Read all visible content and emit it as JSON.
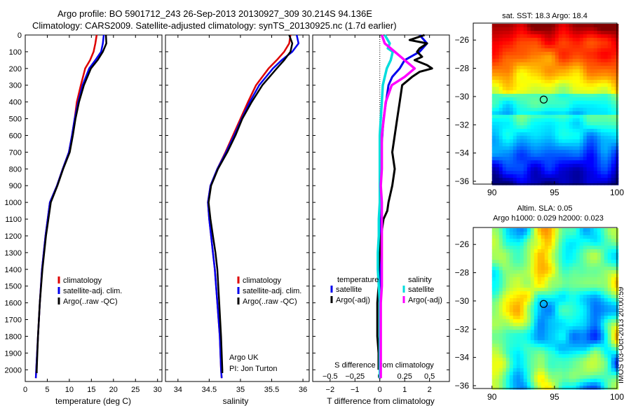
{
  "header": {
    "title1": "Argo profile: BO 5901712_243 26-Sep-2013 20130927_309 30.214S 94.136E",
    "title2": "Climatology: CARS2009. Satellite-adjusted climatology: synTS_20130925.nc (1.7d earlier)"
  },
  "footer": {
    "stamp": "IMOS 03-Oct-2013 20:00:59"
  },
  "colors": {
    "climatology": "#dd0000",
    "satellite": "#0000ee",
    "argo": "#000000",
    "sal_satellite": "#00dddd",
    "sal_argo": "#ff00ff"
  },
  "chart_data": [
    {
      "type": "line",
      "panel": "temperature",
      "xlabel": "temperature (deg C)",
      "ylabel": "",
      "xlim": [
        0,
        31
      ],
      "ylim": [
        2070,
        0
      ],
      "xticks": [
        0,
        5,
        10,
        15,
        20,
        25,
        30
      ],
      "yticks": [
        0,
        100,
        200,
        300,
        400,
        500,
        600,
        700,
        800,
        900,
        1000,
        1100,
        1200,
        1300,
        1400,
        1500,
        1600,
        1700,
        1800,
        1900,
        2000
      ],
      "legend": [
        "climatology",
        "satellite-adj. clim.",
        "Argo(..raw -QC)"
      ],
      "series": [
        {
          "name": "climatology",
          "depth": [
            0,
            50,
            100,
            150,
            200,
            300,
            400,
            500,
            600,
            700,
            800,
            900,
            1000,
            1200,
            1400,
            1600,
            1800,
            2000,
            2050
          ],
          "values": [
            16.2,
            15.9,
            15.5,
            14.7,
            13.6,
            12.6,
            11.7,
            11.2,
            10.6,
            9.9,
            8.5,
            7.2,
            5.6,
            4.6,
            3.8,
            3.3,
            2.9,
            2.5,
            2.4
          ]
        },
        {
          "name": "satellite-adj. clim.",
          "depth": [
            0,
            50,
            100,
            150,
            200,
            300,
            400,
            500,
            600,
            700,
            800,
            900,
            1000,
            1200,
            1400,
            1600,
            1800,
            2000,
            2050
          ],
          "values": [
            17.8,
            17.6,
            17.2,
            15.9,
            14.5,
            13.0,
            12.0,
            11.2,
            10.6,
            9.9,
            8.5,
            7.2,
            5.6,
            4.6,
            3.8,
            3.3,
            2.9,
            2.5,
            2.4
          ]
        },
        {
          "name": "Argo(..raw -QC)",
          "depth": [
            0,
            50,
            100,
            150,
            200,
            300,
            400,
            500,
            600,
            700,
            800,
            900,
            1000,
            1200,
            1400,
            1600,
            1800,
            2000,
            2020
          ],
          "values": [
            18.3,
            18.4,
            17.6,
            16.4,
            14.9,
            13.3,
            12.2,
            11.4,
            10.8,
            10.1,
            8.6,
            7.3,
            5.8,
            4.7,
            3.9,
            3.3,
            2.9,
            2.6,
            2.6
          ]
        }
      ]
    },
    {
      "type": "line",
      "panel": "salinity",
      "xlabel": "salinity",
      "ylabel": "",
      "xlim": [
        33.8,
        36.1
      ],
      "ylim": [
        2070,
        0
      ],
      "xticks": [
        34,
        34.5,
        35,
        35.5,
        36
      ],
      "legend": [
        "climatology",
        "satellite-adj. clim.",
        "Argo(..raw -QC)"
      ],
      "annotations": [
        "Argo UK",
        "PI: Jon Turton"
      ],
      "series": [
        {
          "name": "climatology",
          "depth": [
            0,
            50,
            100,
            150,
            200,
            300,
            400,
            500,
            600,
            700,
            800,
            900,
            1000,
            1100,
            1200,
            1300,
            1400,
            1600,
            1800,
            2000,
            2050
          ],
          "values": [
            35.8,
            35.78,
            35.7,
            35.58,
            35.45,
            35.25,
            35.12,
            35.0,
            34.88,
            34.76,
            34.63,
            34.52,
            34.48,
            34.5,
            34.53,
            34.56,
            34.59,
            34.63,
            34.67,
            34.69,
            34.7
          ]
        },
        {
          "name": "satellite-adj. clim.",
          "depth": [
            0,
            50,
            100,
            150,
            200,
            300,
            400,
            500,
            600,
            700,
            800,
            900,
            1000,
            1100,
            1200,
            1300,
            1400,
            1600,
            1800,
            2000,
            2050
          ],
          "values": [
            35.9,
            35.93,
            35.83,
            35.66,
            35.52,
            35.3,
            35.15,
            35.02,
            34.9,
            34.77,
            34.63,
            34.52,
            34.48,
            34.5,
            34.53,
            34.56,
            34.59,
            34.63,
            34.67,
            34.69,
            34.7
          ]
        },
        {
          "name": "Argo(..raw -QC)",
          "depth": [
            0,
            50,
            100,
            150,
            200,
            300,
            400,
            500,
            600,
            700,
            800,
            900,
            1000,
            1100,
            1200,
            1300,
            1400,
            1600,
            1800,
            2000,
            2020
          ],
          "values": [
            35.78,
            35.83,
            35.8,
            35.7,
            35.58,
            35.35,
            35.18,
            35.03,
            34.92,
            34.79,
            34.64,
            34.53,
            34.49,
            34.52,
            34.56,
            34.6,
            34.63,
            34.66,
            34.69,
            34.71,
            34.71
          ]
        }
      ]
    },
    {
      "type": "line",
      "panel": "differences",
      "xlabel": "T difference from climatology",
      "xlabel_top": "S difference from climatology",
      "xlim": [
        -2.7,
        2.8
      ],
      "ylim": [
        2070,
        0
      ],
      "xticks": [
        -2,
        -1,
        0,
        1,
        2
      ],
      "xticks_top": [
        -0.5,
        -0.25,
        0,
        0.25,
        0.5
      ],
      "legend_headers": [
        "temperature",
        "salinity"
      ],
      "legend": [
        "satellite",
        "Argo(-adj)",
        "satellite",
        "Argo(-adj)"
      ],
      "series": [
        {
          "name": "satellite",
          "group": "temperature",
          "depth": [
            0,
            50,
            100,
            150,
            200,
            250,
            300,
            400,
            500,
            600,
            700,
            800,
            900,
            1000,
            1100,
            1200,
            1300,
            1400,
            1500,
            1600,
            1700,
            1800,
            1900,
            2000,
            2050
          ],
          "values": [
            1.6,
            1.9,
            1.6,
            1.0,
            0.8,
            0.5,
            0.35,
            0.25,
            0.15,
            0.1,
            0.05,
            0.0,
            0.0,
            0.0,
            0.0,
            0.0,
            0.0,
            0.0,
            0.0,
            0.0,
            0.0,
            0.0,
            0.0,
            0.0,
            0.0
          ]
        },
        {
          "name": "Argo(-adj)",
          "group": "temperature",
          "depth": [
            0,
            30,
            50,
            80,
            100,
            130,
            150,
            180,
            200,
            220,
            250,
            300,
            400,
            500,
            600,
            700,
            800,
            900,
            1000,
            1050,
            1100,
            1200,
            1300,
            1400,
            1500,
            1600,
            1700,
            1800,
            1900,
            2000
          ],
          "values": [
            1.8,
            1.2,
            1.9,
            1.6,
            1.5,
            1.7,
            1.4,
            1.9,
            2.1,
            1.6,
            1.3,
            0.9,
            0.8,
            0.7,
            0.6,
            0.5,
            0.6,
            0.5,
            0.35,
            0.3,
            0.15,
            0.05,
            0.0,
            -0.05,
            -0.05,
            -0.1,
            -0.1,
            -0.1,
            -0.05,
            -0.05
          ]
        },
        {
          "name": "satellite",
          "group": "salinity",
          "depth": [
            0,
            50,
            80,
            100,
            150,
            200,
            250,
            300,
            400,
            500,
            600,
            700,
            800,
            900,
            1000,
            1100,
            1200,
            1300,
            1400,
            1500,
            1600,
            1700,
            1800,
            1900,
            2000,
            2050
          ],
          "values": [
            0.05,
            0.1,
            0.08,
            0.13,
            0.11,
            0.07,
            0.05,
            0.03,
            0.02,
            0.01,
            0.0,
            0.0,
            0.0,
            0.0,
            0.0,
            -0.01,
            -0.01,
            -0.02,
            -0.02,
            -0.01,
            0.0,
            0.0,
            0.0,
            0.0,
            0.0,
            0.0
          ]
        },
        {
          "name": "Argo(-adj)",
          "group": "salinity",
          "depth": [
            0,
            50,
            100,
            150,
            200,
            250,
            300,
            400,
            500,
            600,
            700,
            800,
            900,
            1000,
            1100,
            1200,
            1300,
            1400,
            1500,
            1600,
            1700,
            1800,
            1900,
            2000,
            2050
          ],
          "values": [
            0.02,
            0.05,
            0.15,
            0.25,
            0.35,
            0.25,
            0.12,
            0.06,
            0.04,
            0.02,
            0.02,
            0.02,
            0.01,
            0.02,
            0.02,
            0.02,
            0.02,
            0.02,
            0.02,
            0.01,
            0.01,
            0.01,
            0.01,
            0.01,
            0.01
          ]
        }
      ]
    },
    {
      "type": "heatmap",
      "panel": "sst-map",
      "title": "sat. SST: 18.3 Argo: 18.4",
      "xlim": [
        88.5,
        100
      ],
      "ylim": [
        -36.2,
        -24.8
      ],
      "xticks": [
        90,
        95,
        100
      ],
      "yticks": [
        -26,
        -28,
        -30,
        -32,
        -34,
        -36
      ],
      "marker": {
        "lon": 94.136,
        "lat": -30.214
      }
    },
    {
      "type": "heatmap",
      "panel": "sla-map",
      "title": "Altim. SLA: 0.05",
      "subtitle": "Argo h1000: 0.029 h2000: 0.023",
      "xlim": [
        88.5,
        100
      ],
      "ylim": [
        -36.2,
        -24.8
      ],
      "xticks": [
        90,
        95,
        100
      ],
      "yticks": [
        -26,
        -28,
        -30,
        -32,
        -34,
        -36
      ],
      "marker": {
        "lon": 94.136,
        "lat": -30.214
      }
    }
  ]
}
